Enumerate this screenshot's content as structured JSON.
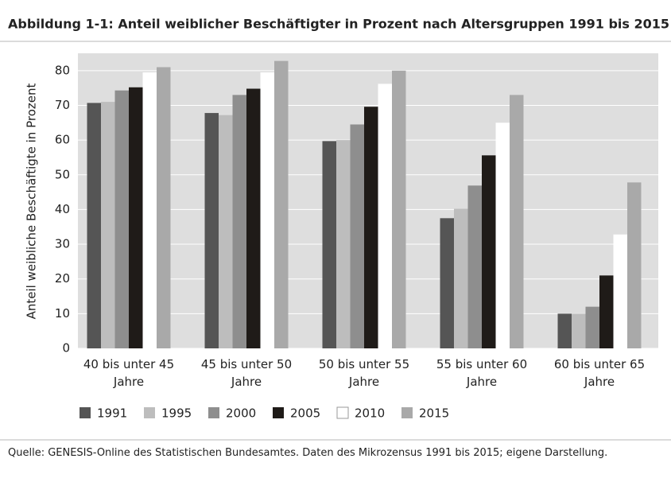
{
  "chart_data": {
    "type": "bar",
    "title": "Abbildung 1-1: Anteil weiblicher Beschäftigter in Prozent nach Altersgruppen 1991 bis 2015",
    "ylabel": "Anteil weibliche Beschäftigte in Prozent",
    "categories": [
      "40 bis unter 45 Jahre",
      "45 bis unter 50 Jahre",
      "50 bis unter 55 Jahre",
      "55 bis unter 60 Jahre",
      "60 bis unter 65 Jahre"
    ],
    "series": [
      {
        "name": "1991",
        "color": "#555555",
        "values": [
          70.7,
          67.8,
          59.7,
          37.5,
          10
        ]
      },
      {
        "name": "1995",
        "color": "#bdbdbd",
        "values": [
          71,
          67.2,
          60,
          40.2,
          10
        ]
      },
      {
        "name": "2000",
        "color": "#8e8e8e",
        "values": [
          74.3,
          73,
          64.5,
          46.9,
          12
        ]
      },
      {
        "name": "2005",
        "color": "#1f1b18",
        "values": [
          75.2,
          74.8,
          69.6,
          55.6,
          21
        ]
      },
      {
        "name": "2010",
        "color": "#ffffff",
        "values": [
          79.5,
          79.5,
          76.2,
          65,
          32.8
        ]
      },
      {
        "name": "2015",
        "color": "#a9a9a9",
        "values": [
          81,
          82.8,
          80,
          73,
          47.8
        ]
      }
    ],
    "ylim": [
      0,
      85
    ],
    "yticks": [
      0,
      10,
      20,
      30,
      40,
      50,
      60,
      70,
      80
    ],
    "grid": true,
    "source": "Quelle: GENESIS-Online des Statistischen Bundesamtes. Daten des Mikrozensus 1991 bis 2015; eigene Darstellung."
  }
}
